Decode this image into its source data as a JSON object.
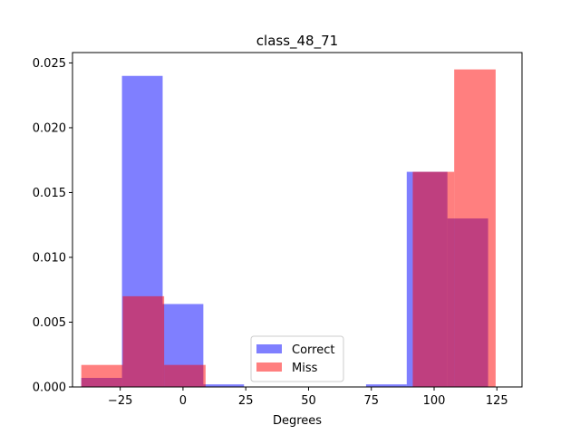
{
  "chart_data": {
    "type": "bar",
    "title": "class_48_71",
    "xlabel": "Degrees",
    "ylabel": "",
    "xlim": [
      -44,
      135
    ],
    "ylim": [
      0,
      0.0258
    ],
    "xticks": [
      -25,
      0,
      25,
      50,
      75,
      100,
      125
    ],
    "xtick_labels": [
      "−25",
      "0",
      "25",
      "50",
      "75",
      "100",
      "125"
    ],
    "yticks": [
      0,
      0.005,
      0.01,
      0.015,
      0.02,
      0.025
    ],
    "ytick_labels": [
      "0.000",
      "0.005",
      "0.010",
      "0.015",
      "0.020",
      "0.025"
    ],
    "legend_position": "lower-center",
    "series": [
      {
        "name": "Correct",
        "color": "#0000ff",
        "opacity": 0.5,
        "bins": [
          {
            "x0": -40.5,
            "x1": -24.3,
            "value": 0.0007
          },
          {
            "x0": -24.3,
            "x1": -8.1,
            "value": 0.024
          },
          {
            "x0": -8.1,
            "x1": 8.1,
            "value": 0.0064
          },
          {
            "x0": 8.1,
            "x1": 24.3,
            "value": 0.0002
          },
          {
            "x0": 24.3,
            "x1": 40.5,
            "value": 0
          },
          {
            "x0": 40.5,
            "x1": 56.7,
            "value": 0
          },
          {
            "x0": 56.7,
            "x1": 72.9,
            "value": 0
          },
          {
            "x0": 72.9,
            "x1": 89.1,
            "value": 0.0002
          },
          {
            "x0": 89.1,
            "x1": 105.3,
            "value": 0.0166
          },
          {
            "x0": 105.3,
            "x1": 121.5,
            "value": 0.013
          }
        ]
      },
      {
        "name": "Miss",
        "color": "#ff0000",
        "opacity": 0.5,
        "bins": [
          {
            "x0": -40.5,
            "x1": -24.0,
            "value": 0.0017
          },
          {
            "x0": -24.0,
            "x1": -7.5,
            "value": 0.007
          },
          {
            "x0": -7.5,
            "x1": 9.0,
            "value": 0.0017
          },
          {
            "x0": 9.0,
            "x1": 25.5,
            "value": 0
          },
          {
            "x0": 25.5,
            "x1": 42.0,
            "value": 0
          },
          {
            "x0": 42.0,
            "x1": 58.5,
            "value": 0
          },
          {
            "x0": 58.5,
            "x1": 75.0,
            "value": 0
          },
          {
            "x0": 75.0,
            "x1": 91.5,
            "value": 0
          },
          {
            "x0": 91.5,
            "x1": 108.0,
            "value": 0.0166
          },
          {
            "x0": 108.0,
            "x1": 124.5,
            "value": 0.0245
          }
        ]
      }
    ]
  }
}
